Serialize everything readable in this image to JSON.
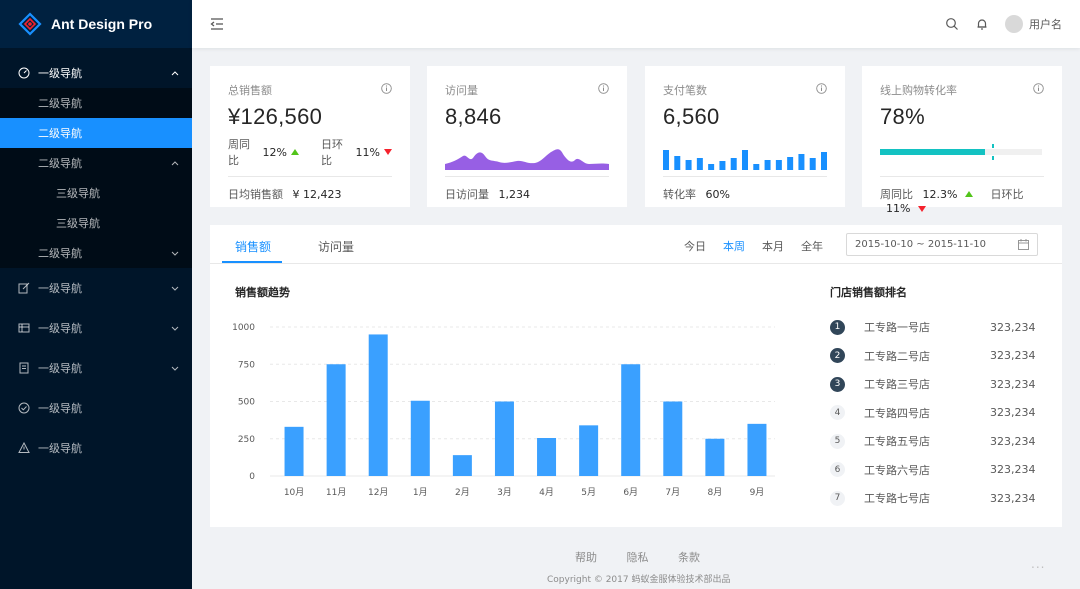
{
  "app": {
    "title": "Ant Design Pro"
  },
  "sidebar": {
    "items": [
      {
        "label": "一级导航",
        "icon": "dashboard-icon",
        "open": true
      },
      {
        "label": "二级导航"
      },
      {
        "label": "二级导航",
        "active": true
      },
      {
        "label": "二级导航",
        "open": true
      },
      {
        "label": "三级导航"
      },
      {
        "label": "三级导航"
      },
      {
        "label": "二级导航"
      },
      {
        "label": "一级导航",
        "icon": "form-icon"
      },
      {
        "label": "一级导航",
        "icon": "table-icon"
      },
      {
        "label": "一级导航",
        "icon": "profile-icon"
      },
      {
        "label": "一级导航",
        "icon": "check-circle-icon"
      },
      {
        "label": "一级导航",
        "icon": "warning-icon"
      }
    ]
  },
  "header": {
    "username": "用户名"
  },
  "cards": [
    {
      "title": "总销售额",
      "value": "¥126,560",
      "wow_label": "周同比",
      "wow": "12%",
      "dod_label": "日环比",
      "dod": "11%",
      "foot_label": "日均销售额",
      "foot_value": "¥ 12,423"
    },
    {
      "title": "访问量",
      "value": "8,846",
      "foot_label": "日访问量",
      "foot_value": "1,234"
    },
    {
      "title": "支付笔数",
      "value": "6,560",
      "foot_label": "转化率",
      "foot_value": "60%"
    },
    {
      "title": "线上购物转化率",
      "value": "78%",
      "progress": 0.78,
      "target": 0.7,
      "wow_label": "周同比",
      "wow": "12.3%",
      "dod_label": "日环比",
      "dod": "11%"
    }
  ],
  "panel": {
    "tabs": [
      "销售额",
      "访问量"
    ],
    "ranges": [
      "今日",
      "本周",
      "本月",
      "全年"
    ],
    "active_range": "本周",
    "date_range": "2015-10-10 ~ 2015-11-10",
    "chart_title": "销售额趋势",
    "rank_title": "门店销售额排名"
  },
  "chart_data": {
    "type": "bar",
    "categories": [
      "10月",
      "11月",
      "12月",
      "1月",
      "2月",
      "3月",
      "4月",
      "5月",
      "6月",
      "7月",
      "8月",
      "9月"
    ],
    "values": [
      330,
      750,
      950,
      505,
      140,
      500,
      255,
      340,
      750,
      500,
      250,
      350
    ],
    "ylim": [
      0,
      1000
    ],
    "yticks": [
      0,
      250,
      500,
      750,
      1000
    ],
    "color": "#3aa0ff",
    "grid": true
  },
  "mini_bars": [
    20,
    14,
    10,
    12,
    6,
    9,
    12,
    20,
    6,
    10,
    10,
    13,
    16,
    12,
    18
  ],
  "ranking": [
    {
      "rank": "1",
      "name": "工专路一号店",
      "value": "323,234"
    },
    {
      "rank": "2",
      "name": "工专路二号店",
      "value": "323,234"
    },
    {
      "rank": "3",
      "name": "工专路三号店",
      "value": "323,234"
    },
    {
      "rank": "4",
      "name": "工专路四号店",
      "value": "323,234"
    },
    {
      "rank": "5",
      "name": "工专路五号店",
      "value": "323,234"
    },
    {
      "rank": "6",
      "name": "工专路六号店",
      "value": "323,234"
    },
    {
      "rank": "7",
      "name": "工专路七号店",
      "value": "323,234"
    }
  ],
  "footer": {
    "links": [
      "帮助",
      "隐私",
      "条款"
    ],
    "copyright": "Copyright © 2017 蚂蚁金服体验技术部出品",
    "more": "..."
  },
  "colors": {
    "primary": "#1890ff",
    "sider": "#001529",
    "area": "#975fe4",
    "progress": "#13c2c2",
    "up": "#52c41a",
    "down": "#f5222d"
  }
}
